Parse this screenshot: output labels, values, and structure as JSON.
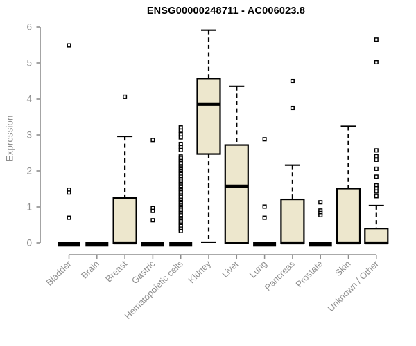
{
  "chart_data": {
    "type": "boxplot",
    "title": "ENSG00000248711 - AC006023.8",
    "ylabel": "Expression",
    "xlabel": "",
    "ylim": [
      0,
      6
    ],
    "yticks": [
      0,
      1,
      2,
      3,
      4,
      5,
      6
    ],
    "grid": false,
    "legend": "none",
    "background": "#ffffff",
    "axis_color": "#8e8e8e",
    "box_fill": "#ede7cd",
    "box_stroke": "#000000",
    "median_color": "#000000",
    "outlier_fill": "#ffffff",
    "categories": [
      "Bladder",
      "Brain",
      "Breast",
      "Gastric",
      "Hematopoietic cells",
      "Kidney",
      "Liver",
      "Lung",
      "Pancreas",
      "Prostate",
      "Skin",
      "Unknown / Other"
    ],
    "series": [
      {
        "category": "Bladder",
        "q1": 0,
        "median": 0,
        "q3": 0,
        "whisker_low": 0,
        "whisker_high": 0,
        "outliers": [
          5.49,
          1.48,
          1.4,
          0.7
        ]
      },
      {
        "category": "Brain",
        "q1": 0,
        "median": 0,
        "q3": 0,
        "whisker_low": 0,
        "whisker_high": 0,
        "outliers": []
      },
      {
        "category": "Breast",
        "q1": 0,
        "median": 0,
        "q3": 1.25,
        "whisker_low": 0,
        "whisker_high": 2.96,
        "outliers": [
          4.06
        ]
      },
      {
        "category": "Gastric",
        "q1": 0,
        "median": 0,
        "q3": 0,
        "whisker_low": 0,
        "whisker_high": 0,
        "outliers": [
          2.86,
          0.97,
          0.89,
          0.63
        ]
      },
      {
        "category": "Hematopoietic cells",
        "q1": 0,
        "median": 0,
        "q3": 0,
        "whisker_low": 0,
        "whisker_high": 0,
        "outliers": [
          3.21,
          3.12,
          3.02,
          2.93,
          2.75,
          2.66,
          2.58,
          2.4,
          2.36,
          2.31,
          2.27,
          2.22,
          2.18,
          2.13,
          2.09,
          2.04,
          2.0,
          1.95,
          1.91,
          1.86,
          1.82,
          1.77,
          1.73,
          1.68,
          1.64,
          1.59,
          1.55,
          1.5,
          1.46,
          1.41,
          1.37,
          1.32,
          1.28,
          1.23,
          1.19,
          1.14,
          1.1,
          1.05,
          1.01,
          0.96,
          0.92,
          0.87,
          0.83,
          0.78,
          0.74,
          0.69,
          0.65,
          0.6,
          0.56,
          0.51,
          0.47,
          0.42,
          0.38,
          0.33
        ]
      },
      {
        "category": "Kidney",
        "q1": 2.47,
        "median": 3.85,
        "q3": 4.57,
        "whisker_low": 0.02,
        "whisker_high": 5.91,
        "outliers": []
      },
      {
        "category": "Liver",
        "q1": 0,
        "median": 1.58,
        "q3": 2.72,
        "whisker_low": 0,
        "whisker_high": 4.35,
        "outliers": []
      },
      {
        "category": "Lung",
        "q1": 0,
        "median": 0,
        "q3": 0,
        "whisker_low": 0,
        "whisker_high": 0,
        "outliers": [
          2.88,
          1.01,
          0.7
        ]
      },
      {
        "category": "Pancreas",
        "q1": 0,
        "median": 0,
        "q3": 1.21,
        "whisker_low": 0,
        "whisker_high": 2.16,
        "outliers": [
          4.5,
          3.75
        ]
      },
      {
        "category": "Prostate",
        "q1": 0,
        "median": 0,
        "q3": 0,
        "whisker_low": 0,
        "whisker_high": 0,
        "outliers": [
          1.13,
          0.9,
          0.83,
          0.77
        ]
      },
      {
        "category": "Skin",
        "q1": 0,
        "median": 0,
        "q3": 1.51,
        "whisker_low": 0,
        "whisker_high": 3.24,
        "outliers": []
      },
      {
        "category": "Unknown / Other",
        "q1": 0,
        "median": 0,
        "q3": 0.4,
        "whisker_low": 0,
        "whisker_high": 1.04,
        "outliers": [
          5.65,
          5.02,
          2.57,
          2.41,
          2.31,
          2.06,
          1.84,
          1.6,
          1.52,
          1.43,
          1.3
        ]
      }
    ]
  }
}
